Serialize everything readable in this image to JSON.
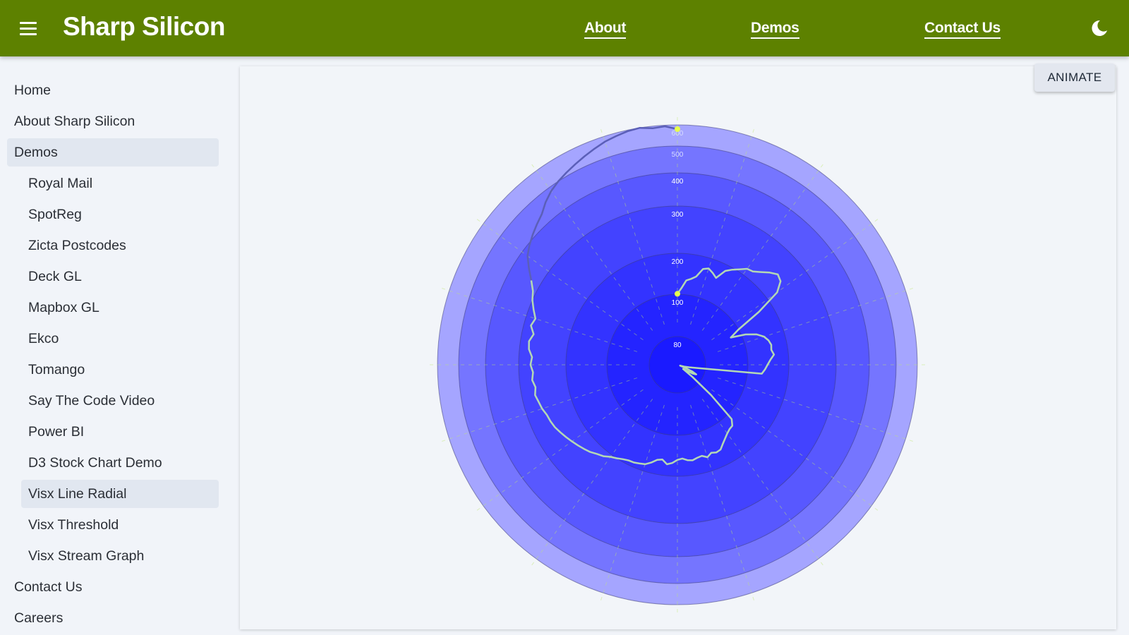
{
  "header": {
    "brand": "Sharp Silicon",
    "nav": [
      {
        "label": "About"
      },
      {
        "label": "Demos"
      },
      {
        "label": "Contact Us"
      }
    ],
    "icons": {
      "menu": "hamburger-menu-icon",
      "theme": "moon-icon"
    },
    "bg_color": "#5d8100"
  },
  "sidebar": {
    "items": [
      {
        "label": "Home",
        "level": "top",
        "selected": false
      },
      {
        "label": "About Sharp Silicon",
        "level": "top",
        "selected": false
      },
      {
        "label": "Demos",
        "level": "top",
        "selected": true
      },
      {
        "label": "Royal Mail",
        "level": "sub",
        "selected": false
      },
      {
        "label": "SpotReg",
        "level": "sub",
        "selected": false
      },
      {
        "label": "Zicta Postcodes",
        "level": "sub",
        "selected": false
      },
      {
        "label": "Deck GL",
        "level": "sub",
        "selected": false
      },
      {
        "label": "Mapbox GL",
        "level": "sub",
        "selected": false
      },
      {
        "label": "Ekco",
        "level": "sub",
        "selected": false
      },
      {
        "label": "Tomango",
        "level": "sub",
        "selected": false
      },
      {
        "label": "Say The Code Video",
        "level": "sub",
        "selected": false
      },
      {
        "label": "Power BI",
        "level": "sub",
        "selected": false
      },
      {
        "label": "D3 Stock Chart Demo",
        "level": "sub",
        "selected": false
      },
      {
        "label": "Visx Line Radial",
        "level": "sub",
        "selected": true
      },
      {
        "label": "Visx Threshold",
        "level": "sub",
        "selected": false
      },
      {
        "label": "Visx Stream Graph",
        "level": "sub",
        "selected": false
      },
      {
        "label": "Contact Us",
        "level": "top",
        "selected": false
      },
      {
        "label": "Careers",
        "level": "top",
        "selected": false
      }
    ]
  },
  "main": {
    "animate_label": "ANIMATE"
  },
  "chart_data": {
    "type": "line",
    "subtype": "radial",
    "title": "",
    "radial_ticks": [
      80,
      100,
      200,
      300,
      400,
      500,
      600
    ],
    "rlim": [
      0,
      600
    ],
    "grid": true,
    "ring_colors": [
      "#1a1aff",
      "#2424ff",
      "#3333ff",
      "#4343ff",
      "#5858ff",
      "#7575ff",
      "#a5a5ff"
    ],
    "line_color": "#b4d8b4",
    "line_color_outer": "#5b5fb8",
    "point_color": "#e6ff4d",
    "angle_unit": "degrees clockwise from top",
    "series": [
      {
        "points": [
          [
            0,
            101
          ],
          [
            3,
            115
          ],
          [
            6,
            135
          ],
          [
            9,
            140
          ],
          [
            12,
            148
          ],
          [
            15,
            170
          ],
          [
            18,
            175
          ],
          [
            21,
            168
          ],
          [
            24,
            160
          ],
          [
            27,
            185
          ],
          [
            30,
            196
          ],
          [
            33,
            205
          ],
          [
            36,
            215
          ],
          [
            39,
            218
          ],
          [
            42,
            228
          ],
          [
            45,
            240
          ],
          [
            48,
            250
          ],
          [
            51,
            245
          ],
          [
            54,
            225
          ],
          [
            57,
            165
          ],
          [
            60,
            100
          ],
          [
            63,
            95
          ],
          [
            66,
            110
          ],
          [
            69,
            135
          ],
          [
            72,
            150
          ],
          [
            75,
            158
          ],
          [
            78,
            162
          ],
          [
            81,
            160
          ],
          [
            84,
            165
          ],
          [
            87,
            155
          ],
          [
            90,
            148
          ],
          [
            93,
            142
          ],
          [
            96,
            135
          ],
          [
            99,
            60
          ],
          [
            102,
            35
          ],
          [
            105,
            22
          ],
          [
            108,
            8
          ],
          [
            111,
            20
          ],
          [
            114,
            45
          ],
          [
            117,
            60
          ],
          [
            120,
            50
          ],
          [
            123,
            30
          ],
          [
            126,
            20
          ],
          [
            129,
            55
          ],
          [
            132,
            88
          ],
          [
            135,
            115
          ],
          [
            138,
            128
          ],
          [
            141,
            130
          ],
          [
            144,
            135
          ],
          [
            147,
            142
          ],
          [
            150,
            150
          ],
          [
            153,
            160
          ],
          [
            156,
            162
          ],
          [
            159,
            158
          ],
          [
            162,
            165
          ],
          [
            165,
            158
          ],
          [
            168,
            160
          ],
          [
            171,
            164
          ],
          [
            174,
            162
          ],
          [
            177,
            157
          ],
          [
            180,
            160
          ],
          [
            183,
            168
          ],
          [
            186,
            172
          ],
          [
            189,
            162
          ],
          [
            192,
            165
          ],
          [
            195,
            175
          ],
          [
            198,
            183
          ],
          [
            201,
            186
          ],
          [
            204,
            189
          ],
          [
            207,
            190
          ],
          [
            210,
            194
          ],
          [
            213,
            200
          ],
          [
            216,
            205
          ],
          [
            219,
            213
          ],
          [
            222,
            218
          ],
          [
            225,
            225
          ],
          [
            228,
            230
          ],
          [
            231,
            235
          ],
          [
            234,
            240
          ],
          [
            237,
            245
          ],
          [
            240,
            250
          ],
          [
            243,
            255
          ],
          [
            246,
            258
          ],
          [
            249,
            260
          ],
          [
            252,
            265
          ],
          [
            255,
            268
          ],
          [
            258,
            272
          ],
          [
            261,
            268
          ],
          [
            264,
            273
          ],
          [
            267,
            270
          ],
          [
            270,
            275
          ],
          [
            273,
            272
          ],
          [
            276,
            280
          ],
          [
            279,
            282
          ],
          [
            282,
            275
          ],
          [
            285,
            285
          ],
          [
            288,
            280
          ],
          [
            291,
            290
          ],
          [
            294,
            300
          ],
          [
            297,
            310
          ],
          [
            300,
            330
          ],
          [
            303,
            355
          ],
          [
            306,
            380
          ],
          [
            309,
            395
          ],
          [
            312,
            410
          ],
          [
            315,
            425
          ],
          [
            318,
            440
          ],
          [
            321,
            465
          ],
          [
            324,
            485
          ],
          [
            327,
            500
          ],
          [
            330,
            515
          ],
          [
            333,
            530
          ],
          [
            336,
            545
          ],
          [
            339,
            560
          ],
          [
            342,
            575
          ],
          [
            345,
            585
          ],
          [
            348,
            595
          ],
          [
            351,
            600
          ],
          [
            354,
            590
          ],
          [
            357,
            595
          ],
          [
            360,
            580
          ]
        ]
      }
    ]
  }
}
